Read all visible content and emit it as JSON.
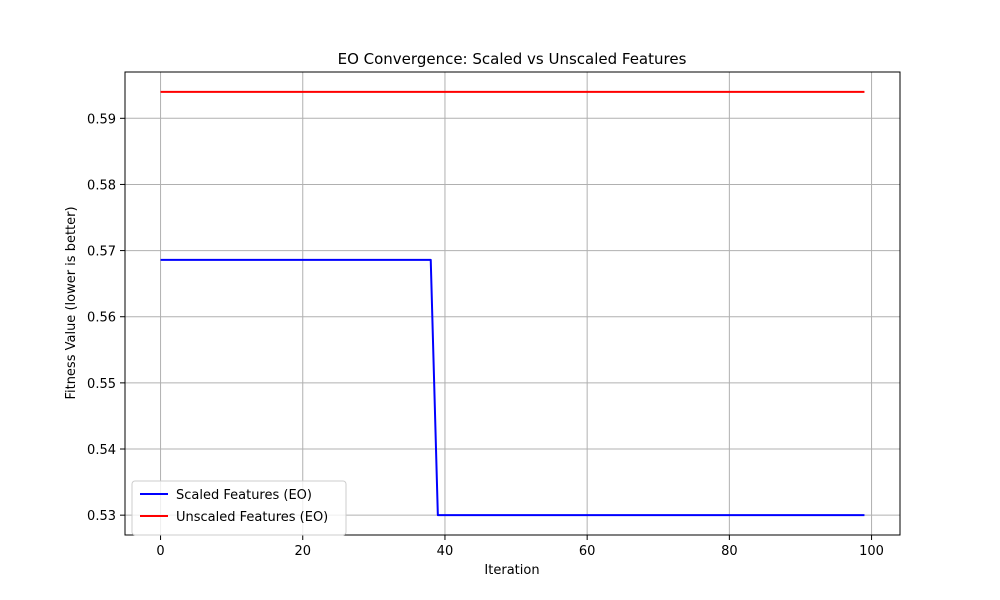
{
  "chart_data": {
    "type": "line",
    "title": "EO Convergence: Scaled vs Unscaled Features",
    "xlabel": "Iteration",
    "ylabel": "Fitness Value (lower is better)",
    "xlim": [
      -5,
      104
    ],
    "ylim": [
      0.527,
      0.597
    ],
    "xticks": [
      0,
      20,
      40,
      60,
      80,
      100
    ],
    "yticks": [
      0.53,
      0.54,
      0.55,
      0.56,
      0.57,
      0.58,
      0.59
    ],
    "xtick_labels": [
      "0",
      "20",
      "40",
      "60",
      "80",
      "100"
    ],
    "ytick_labels": [
      "0.53",
      "0.54",
      "0.55",
      "0.56",
      "0.57",
      "0.58",
      "0.59"
    ],
    "grid": true,
    "legend_position": "lower-left",
    "series": [
      {
        "name": "Scaled Features (EO)",
        "color": "#0000ff",
        "x": [
          0,
          38,
          39,
          99
        ],
        "y": [
          0.5686,
          0.5686,
          0.53,
          0.53
        ]
      },
      {
        "name": "Unscaled Features (EO)",
        "color": "#ff0000",
        "x": [
          0,
          99
        ],
        "y": [
          0.594,
          0.594
        ]
      }
    ]
  }
}
